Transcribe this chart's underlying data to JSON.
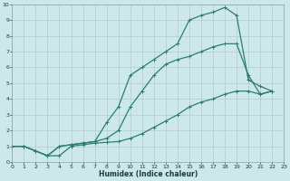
{
  "xlabel": "Humidex (Indice chaleur)",
  "xlim": [
    0,
    23
  ],
  "ylim": [
    0,
    10
  ],
  "xticks": [
    0,
    1,
    2,
    3,
    4,
    5,
    6,
    7,
    8,
    9,
    10,
    11,
    12,
    13,
    14,
    15,
    16,
    17,
    18,
    19,
    20,
    21,
    22,
    23
  ],
  "yticks": [
    0,
    1,
    2,
    3,
    4,
    5,
    6,
    7,
    8,
    9,
    10
  ],
  "background_color": "#cce8e8",
  "grid_color": "#b0cccc",
  "line_color": "#2d7d6e",
  "line1_x": [
    0,
    1,
    2,
    3,
    4,
    5,
    6,
    7,
    8,
    9,
    10,
    11,
    12,
    13,
    14,
    15,
    16,
    17,
    18,
    19,
    20,
    21,
    22
  ],
  "line1_y": [
    1.0,
    1.0,
    0.7,
    0.4,
    0.4,
    1.0,
    1.1,
    1.2,
    1.25,
    1.3,
    1.5,
    1.8,
    2.2,
    2.6,
    3.0,
    3.5,
    3.8,
    4.0,
    4.3,
    4.5,
    4.5,
    4.3,
    4.5
  ],
  "line2_x": [
    0,
    1,
    2,
    3,
    4,
    5,
    6,
    7,
    8,
    9,
    10,
    11,
    12,
    13,
    14,
    15,
    16,
    17,
    18,
    19,
    20,
    21,
    22
  ],
  "line2_y": [
    1.0,
    1.0,
    0.7,
    0.4,
    1.0,
    1.1,
    1.2,
    1.3,
    2.5,
    3.5,
    5.5,
    6.0,
    6.5,
    7.0,
    7.5,
    9.0,
    9.3,
    9.5,
    9.8,
    9.3,
    5.2,
    4.8,
    4.5
  ],
  "line3_x": [
    0,
    1,
    2,
    3,
    4,
    5,
    6,
    7,
    8,
    9,
    10,
    11,
    12,
    13,
    14,
    15,
    16,
    17,
    18,
    19,
    20,
    21,
    22
  ],
  "line3_y": [
    1.0,
    1.0,
    0.7,
    0.4,
    1.0,
    1.1,
    1.2,
    1.3,
    1.5,
    2.0,
    3.5,
    4.5,
    5.5,
    6.2,
    6.5,
    6.7,
    7.0,
    7.3,
    7.5,
    7.5,
    5.5,
    4.3,
    4.5
  ],
  "marker_size": 3,
  "line_width": 0.9
}
